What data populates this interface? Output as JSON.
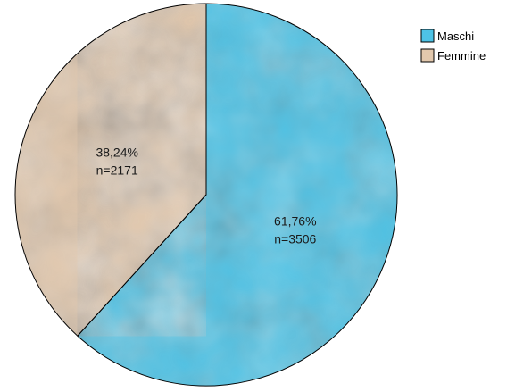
{
  "chart_data": {
    "type": "pie",
    "categories": [
      "Maschi",
      "Femmine"
    ],
    "values": [
      3506,
      2171
    ],
    "percent_labels": [
      "61,76%",
      "38,24%"
    ],
    "count_labels": [
      "n=3506",
      "n=2171"
    ],
    "colors": [
      "#4ec3e6",
      "#e2c8ad"
    ],
    "textures": [
      "#9bd8ea",
      "#b99d7e"
    ],
    "legend": {
      "placement": "top-right",
      "items": [
        "Maschi",
        "Femmine"
      ]
    },
    "start_angle": "12 o'clock",
    "direction": "clockwise"
  }
}
